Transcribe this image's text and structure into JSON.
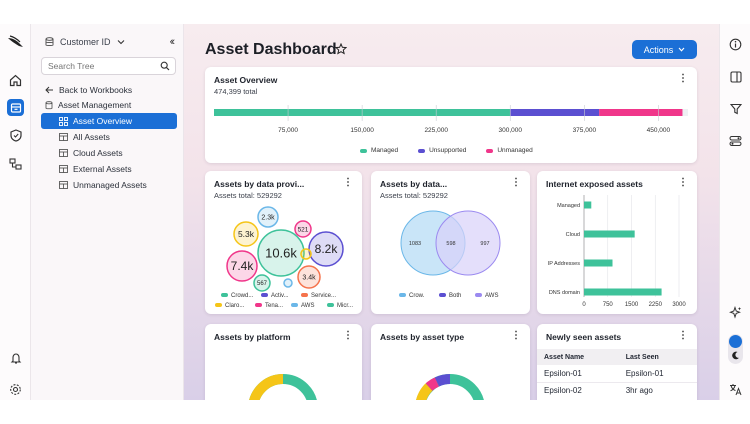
{
  "colors": {
    "accent": "#1b6fd6",
    "managed": "#3ec29a",
    "unsupported": "#5b4fd1",
    "unmanaged": "#f0368a",
    "aws": "#9b8af0",
    "crow": "#6bb7e8"
  },
  "tree": {
    "scope_label": "Customer ID",
    "search_placeholder": "Search Tree",
    "items": [
      {
        "label": "Back to Workbooks",
        "icon": "arrow-left-icon"
      },
      {
        "label": "Asset Management",
        "icon": "database-icon"
      },
      {
        "label": "Asset Overview",
        "icon": "grid-icon",
        "selected": true
      },
      {
        "label": "All Assets",
        "icon": "table-icon"
      },
      {
        "label": "Cloud Assets",
        "icon": "table-icon"
      },
      {
        "label": "External Assets",
        "icon": "table-icon"
      },
      {
        "label": "Unmanaged Assets",
        "icon": "table-icon"
      }
    ]
  },
  "main": {
    "title": "Asset Dashboard",
    "actions_label": "Actions"
  },
  "overview": {
    "title": "Asset Overview",
    "subtitle": "474,399 total",
    "ticks": [
      "75,000",
      "150,000",
      "225,000",
      "300,000",
      "375,000",
      "450,000"
    ],
    "legend": [
      "Managed",
      "Unsupported",
      "Unmanaged"
    ]
  },
  "chart_data": [
    {
      "type": "bar",
      "title": "Asset Overview",
      "orientation": "horizontal-stacked",
      "series": [
        {
          "name": "Managed",
          "values": [
            300000
          ]
        },
        {
          "name": "Unsupported",
          "values": [
            90000
          ]
        },
        {
          "name": "Unmanaged",
          "values": [
            84399
          ]
        }
      ],
      "xlim": [
        0,
        480000
      ]
    },
    {
      "type": "scatter",
      "title": "Assets by data provi...",
      "subtitle": "Assets total: 529292",
      "bubbles": [
        "2.3k",
        "5.3k",
        "521",
        "8.2k",
        "10.6k",
        "7.4k",
        "3.4k",
        "567",
        "",
        ""
      ],
      "legend": [
        "Crowd...",
        "Activ...",
        "Service...",
        "Claro...",
        "Tena...",
        "AWS",
        "Micr..."
      ]
    },
    {
      "type": "venn",
      "title": "Assets by data...",
      "subtitle": "Assets total: 529292",
      "values": [
        "1083",
        "598",
        "997"
      ],
      "legend": [
        "Crow.",
        "Both",
        "AWS"
      ]
    },
    {
      "type": "bar",
      "title": "Internet exposed assets",
      "orientation": "horizontal",
      "categories": [
        "Managed",
        "Cloud",
        "IP Addresses",
        "DNS domain"
      ],
      "values": [
        230,
        1600,
        900,
        2450
      ],
      "xticks": [
        "0",
        "750",
        "1500",
        "2250",
        "3000"
      ],
      "xlim": [
        0,
        3000
      ]
    }
  ],
  "platform_card": {
    "title": "Assets by platform"
  },
  "type_card": {
    "title": "Assets by asset type"
  },
  "newly_seen": {
    "title": "Newly seen assets",
    "columns": [
      "Asset Name",
      "Last Seen"
    ],
    "rows": [
      [
        "Epsilon-01",
        "Epsilon-01"
      ],
      [
        "Epsilon-02",
        "3hr ago"
      ]
    ]
  }
}
